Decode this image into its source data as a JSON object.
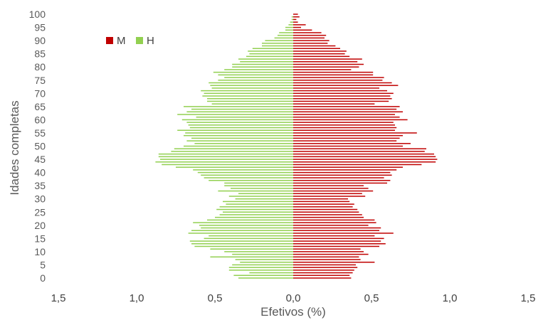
{
  "chart_data": {
    "type": "bar",
    "orientation": "horizontal",
    "layout": "population-pyramid",
    "title": "",
    "xlabel": "Efetivos (%)",
    "ylabel": "Idades completas",
    "xlim": [
      -1.5,
      1.5
    ],
    "x_tick_labels": [
      "1,5",
      "1,0",
      "0,5",
      "0,0",
      "0,5",
      "1,0",
      "1,5"
    ],
    "y_ticks": [
      0,
      5,
      10,
      15,
      20,
      25,
      30,
      35,
      40,
      45,
      50,
      55,
      60,
      65,
      70,
      75,
      80,
      85,
      90,
      95,
      100
    ],
    "legend_position": "top-left",
    "ages": [
      0,
      1,
      2,
      3,
      4,
      5,
      6,
      7,
      8,
      9,
      10,
      11,
      12,
      13,
      14,
      15,
      16,
      17,
      18,
      19,
      20,
      21,
      22,
      23,
      24,
      25,
      26,
      27,
      28,
      29,
      30,
      31,
      32,
      33,
      34,
      35,
      36,
      37,
      38,
      39,
      40,
      41,
      42,
      43,
      44,
      45,
      46,
      47,
      48,
      49,
      50,
      51,
      52,
      53,
      54,
      55,
      56,
      57,
      58,
      59,
      60,
      61,
      62,
      63,
      64,
      65,
      66,
      67,
      68,
      69,
      70,
      71,
      72,
      73,
      74,
      75,
      76,
      77,
      78,
      79,
      80,
      81,
      82,
      83,
      84,
      85,
      86,
      87,
      88,
      89,
      90,
      91,
      92,
      93,
      94,
      95,
      96,
      97,
      98,
      99,
      100
    ],
    "series": [
      {
        "name": "M",
        "color": "#c00000",
        "side": "right",
        "values": [
          0.37,
          0.36,
          0.38,
          0.39,
          0.41,
          0.4,
          0.52,
          0.43,
          0.42,
          0.48,
          0.45,
          0.43,
          0.55,
          0.59,
          0.56,
          0.58,
          0.52,
          0.64,
          0.55,
          0.56,
          0.48,
          0.53,
          0.52,
          0.45,
          0.44,
          0.42,
          0.41,
          0.38,
          0.39,
          0.36,
          0.35,
          0.46,
          0.44,
          0.51,
          0.48,
          0.45,
          0.6,
          0.62,
          0.58,
          0.63,
          0.62,
          0.66,
          0.7,
          0.82,
          0.91,
          0.92,
          0.91,
          0.9,
          0.84,
          0.85,
          0.7,
          0.75,
          0.66,
          0.68,
          0.7,
          0.79,
          0.65,
          0.66,
          0.65,
          0.64,
          0.73,
          0.68,
          0.65,
          0.7,
          0.66,
          0.68,
          0.52,
          0.61,
          0.63,
          0.62,
          0.64,
          0.6,
          0.55,
          0.67,
          0.63,
          0.57,
          0.58,
          0.51,
          0.51,
          0.37,
          0.42,
          0.45,
          0.41,
          0.44,
          0.36,
          0.33,
          0.34,
          0.3,
          0.27,
          0.22,
          0.23,
          0.2,
          0.21,
          0.18,
          0.12,
          0.05,
          0.08,
          0.03,
          0.02,
          0.04,
          0.03
        ]
      },
      {
        "name": "H",
        "color": "#92d050",
        "side": "left",
        "values": [
          0.35,
          0.38,
          0.28,
          0.41,
          0.41,
          0.39,
          0.34,
          0.37,
          0.53,
          0.39,
          0.44,
          0.53,
          0.63,
          0.65,
          0.66,
          0.57,
          0.54,
          0.67,
          0.65,
          0.59,
          0.6,
          0.64,
          0.55,
          0.5,
          0.47,
          0.45,
          0.49,
          0.47,
          0.43,
          0.45,
          0.37,
          0.41,
          0.35,
          0.48,
          0.4,
          0.44,
          0.44,
          0.54,
          0.57,
          0.59,
          0.61,
          0.64,
          0.75,
          0.84,
          0.88,
          0.85,
          0.86,
          0.86,
          0.78,
          0.76,
          0.7,
          0.63,
          0.68,
          0.65,
          0.7,
          0.69,
          0.74,
          0.66,
          0.67,
          0.68,
          0.71,
          0.62,
          0.74,
          0.68,
          0.65,
          0.7,
          0.52,
          0.55,
          0.55,
          0.58,
          0.57,
          0.59,
          0.52,
          0.53,
          0.54,
          0.48,
          0.44,
          0.48,
          0.51,
          0.44,
          0.39,
          0.39,
          0.34,
          0.35,
          0.3,
          0.28,
          0.29,
          0.26,
          0.2,
          0.2,
          0.18,
          0.12,
          0.1,
          0.09,
          0.05,
          0.05,
          0.03,
          0.02,
          0.01,
          0.01,
          0.0
        ]
      }
    ]
  }
}
